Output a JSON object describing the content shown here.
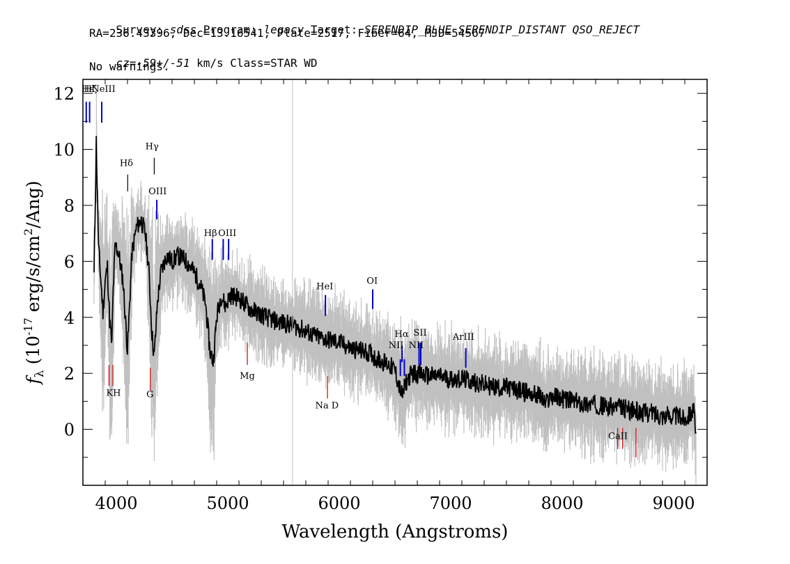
{
  "header": {
    "line1": [
      {
        "text": "Survey: ",
        "style": "normal"
      },
      {
        "text": "sdss",
        "style": "italic"
      },
      {
        "text": " Program: ",
        "style": "normal"
      },
      {
        "text": "legacy",
        "style": "italic"
      },
      {
        "text": " Target: ",
        "style": "normal"
      },
      {
        "text": "SERENDIP_BLUE SERENDIP_DISTANT QSO_REJECT",
        "style": "italic"
      }
    ],
    "line2": "RA=236.43396, Dec=13.16541, Plate=2517, Fiber=64, MJD=54567",
    "line3": [
      {
        "text": "cz=",
        "style": "italic"
      },
      {
        "text": "-59+/-51",
        "style": "italic"
      },
      {
        "text": " km/s Class=STAR WD",
        "style": "normal"
      }
    ],
    "line4": "No warnings."
  },
  "chart_data": {
    "type": "line",
    "xlabel": "Wavelength (Angstroms)",
    "ylabel": "f_λ (10^-17 erg/s/cm^2/Ang)",
    "xlim": [
      3700,
      9300
    ],
    "ylim": [
      -2,
      12.5
    ],
    "x_ticks": [
      4000,
      5000,
      6000,
      7000,
      8000,
      9000
    ],
    "y_ticks": [
      0,
      2,
      4,
      6,
      8,
      10,
      12
    ],
    "vertical_marker_x": 5580,
    "series": [
      {
        "style": "flux",
        "color": "#000000",
        "x": [
          3800,
          3820,
          3840,
          3860,
          3880,
          3900,
          3920,
          3940,
          3960,
          3970,
          3990,
          4020,
          4060,
          4100,
          4140,
          4180,
          4220,
          4260,
          4290,
          4320,
          4340,
          4370,
          4400,
          4450,
          4500,
          4550,
          4600,
          4650,
          4700,
          4750,
          4800,
          4840,
          4870,
          4900,
          4940,
          4980,
          5020,
          5100,
          5200,
          5300,
          5400,
          5500,
          5600,
          5700,
          5800,
          5900,
          6000,
          6100,
          6200,
          6300,
          6302,
          6304,
          6350,
          6400,
          6450,
          6500,
          6540,
          6565,
          6600,
          6650,
          6700,
          6800,
          6900,
          7000,
          7100,
          7200,
          7300,
          7400,
          7500,
          7600,
          7700,
          7800,
          7850,
          7900,
          8000,
          8100,
          8200,
          8300,
          8400,
          8500,
          8600,
          8700,
          8800,
          8900,
          9000,
          9100,
          9180,
          9200
        ],
        "y": [
          5.5,
          10.3,
          6.5,
          5.4,
          4.2,
          5.3,
          5.8,
          3.9,
          3.0,
          4.8,
          6.6,
          6.3,
          5.3,
          2.8,
          6.3,
          7.2,
          7.5,
          7.0,
          5.8,
          3.4,
          2.6,
          4.6,
          5.6,
          6.2,
          6.0,
          6.2,
          6.1,
          5.9,
          5.6,
          5.2,
          4.5,
          2.8,
          2.4,
          4.0,
          4.8,
          4.4,
          4.8,
          4.7,
          4.3,
          4.1,
          3.9,
          3.8,
          3.7,
          3.5,
          3.3,
          3.2,
          3.1,
          2.9,
          2.8,
          2.7,
          4.1,
          2.6,
          2.5,
          2.4,
          2.3,
          2.1,
          1.5,
          1.2,
          1.7,
          2.0,
          2.0,
          1.9,
          1.9,
          1.8,
          1.8,
          1.7,
          1.6,
          1.5,
          1.5,
          1.4,
          1.3,
          1.2,
          0.9,
          1.2,
          1.1,
          1.0,
          0.9,
          0.9,
          0.8,
          0.8,
          0.7,
          0.6,
          0.6,
          0.5,
          0.5,
          0.4,
          0.7,
          -0.4
        ]
      },
      {
        "style": "noise",
        "color": "#c0c0c0",
        "x": [
          3800,
          3900,
          4000,
          4200,
          4400,
          4600,
          4800,
          5000,
          5500,
          6000,
          6500,
          7000,
          7500,
          8000,
          8500,
          9000,
          9200
        ],
        "y": [
          7.0,
          7.5,
          6.8,
          7.5,
          6.5,
          6.4,
          5.5,
          5.0,
          4.2,
          3.6,
          2.6,
          2.3,
          2.0,
          1.6,
          1.4,
          1.0,
          0.8
        ]
      }
    ],
    "annotations": [
      {
        "label": "Hε",
        "x": 3730,
        "color": "#0000cc",
        "kind": "emission",
        "label_y": 12.05,
        "tick_top": 11.7,
        "tick_bottom": 10.95
      },
      {
        "label": "Hζ",
        "x": 3760,
        "color": "#0000cc",
        "kind": "emission",
        "label_y": 12.05,
        "tick_top": 11.7,
        "tick_bottom": 10.95
      },
      {
        "label": "NeIII",
        "x": 3869,
        "color": "#0000cc",
        "kind": "emission",
        "label_y": 12.05,
        "tick_top": 11.7,
        "tick_bottom": 10.95
      },
      {
        "label": "Hδ",
        "x": 4102,
        "color": "#000000",
        "kind": "absorption",
        "label_y": 9.4,
        "tick_top": 9.1,
        "tick_bottom": 8.5
      },
      {
        "label": "Hγ",
        "x": 4340,
        "color": "#000000",
        "kind": "absorption",
        "label_y": 10.0,
        "tick_top": 9.7,
        "tick_bottom": 9.1
      },
      {
        "label": "OIII",
        "x": 4363,
        "color": "#0000cc",
        "kind": "emission",
        "label_y": 8.4,
        "tick_top": 8.2,
        "tick_bottom": 7.5
      },
      {
        "label": "Hβ",
        "x": 4861,
        "color": "#0000cc",
        "kind": "emission",
        "label_y": 6.9,
        "tick_top": 6.8,
        "tick_bottom": 6.05
      },
      {
        "label": "OIII",
        "x": 4959,
        "color": "#0000cc",
        "kind": "emission",
        "label_y": 6.9,
        "tick_top": 6.8,
        "tick_bottom": 6.05
      },
      {
        "label": "OIII",
        "x": 5007,
        "color": "#0000cc",
        "kind": "emission",
        "label_y": 6.9,
        "tick_top": 6.8,
        "tick_bottom": 6.05
      },
      {
        "label": "HeI",
        "x": 5876,
        "color": "#0000cc",
        "kind": "emission",
        "label_y": 5.0,
        "tick_top": 4.8,
        "tick_bottom": 4.05
      },
      {
        "label": "OI",
        "x": 6300,
        "color": "#0000cc",
        "kind": "emission",
        "label_y": 5.2,
        "tick_top": 5.0,
        "tick_bottom": 4.3
      },
      {
        "label": "NII",
        "x": 6548,
        "color": "#0000cc",
        "kind": "emission",
        "label_y": 2.9,
        "tick_top": 2.5,
        "tick_bottom": 1.9
      },
      {
        "label": "Hα",
        "x": 6563,
        "color": "#0000cc",
        "kind": "emission",
        "label_y": 3.3,
        "tick_top": 3.0,
        "tick_bottom": 2.4
      },
      {
        "label": "NII",
        "x": 6584,
        "color": "#0000cc",
        "kind": "emission",
        "label_y": 2.9,
        "tick_top": 2.5,
        "tick_bottom": 1.9
      },
      {
        "label": "SII",
        "x": 6716,
        "color": "#0000cc",
        "kind": "emission",
        "label_y": 3.3,
        "tick_top": 3.1,
        "tick_bottom": 2.3
      },
      {
        "label": "SII",
        "x": 6731,
        "color": "#0000cc",
        "kind": "emission",
        "label_y": 3.3,
        "tick_top": 3.1,
        "tick_bottom": 2.3
      },
      {
        "label": "ArIII",
        "x": 7135,
        "color": "#0000cc",
        "kind": "emission",
        "label_y": 3.2,
        "tick_top": 2.9,
        "tick_bottom": 2.2
      },
      {
        "label": "K",
        "x": 3934,
        "color": "#cc0000",
        "kind": "absorption",
        "label_y": 1.2,
        "tick_top": 2.3,
        "tick_bottom": 1.55
      },
      {
        "label": "H",
        "x": 3969,
        "color": "#cc0000",
        "kind": "absorption",
        "label_y": 1.2,
        "tick_top": 2.3,
        "tick_bottom": 1.55
      },
      {
        "label": "G",
        "x": 4305,
        "color": "#cc0000",
        "kind": "absorption",
        "label_y": 1.15,
        "tick_top": 2.2,
        "tick_bottom": 1.4
      },
      {
        "label": "Mg",
        "x": 5175,
        "color": "#cc0000",
        "kind": "absorption",
        "label_y": 1.8,
        "tick_top": 3.1,
        "tick_bottom": 2.3
      },
      {
        "label": "Na D",
        "x": 5894,
        "color": "#cc0000",
        "kind": "absorption",
        "label_y": 0.75,
        "tick_top": 1.9,
        "tick_bottom": 1.1
      },
      {
        "label": "CaII",
        "x": 8498,
        "color": "#cc0000",
        "kind": "absorption",
        "label_y": -0.35,
        "tick_top": 0.05,
        "tick_bottom": -0.7
      },
      {
        "label": "CaII",
        "x": 8542,
        "color": "#cc0000",
        "kind": "absorption",
        "label_y": -0.35,
        "tick_top": 0.05,
        "tick_bottom": -0.7
      },
      {
        "label": "CaII",
        "x": 8662,
        "color": "#cc0000",
        "kind": "absorption",
        "label_y": -0.35,
        "tick_top": 0.05,
        "tick_bottom": -1.0
      }
    ],
    "annotation_labels_shown": [
      "Hε",
      "Hζ",
      "NeIII",
      "Hδ",
      "Hγ",
      "OIII",
      "Hβ",
      "OIII",
      "HeI",
      "OI",
      "NII",
      "Hα",
      "SII",
      "NII",
      "ArIII",
      "KH",
      "G",
      "Mg",
      "Na D",
      "CaII"
    ]
  }
}
